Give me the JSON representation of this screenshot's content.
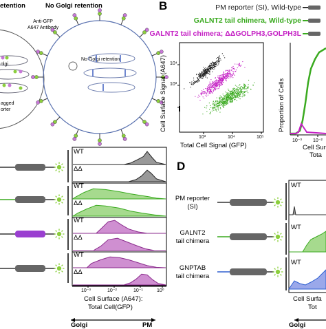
{
  "figure": {
    "panel_a": {
      "left_header": "etention",
      "right_header": "No Golgi retention",
      "antibody_label": "Anti-GFP\nA647 Antibody",
      "antibody_line1": "Anti-GFP",
      "antibody_line2": "A647 Antibody",
      "golgi_label_partial": "olgi",
      "tagged_label": "agged",
      "reporter_label": "orter",
      "no_golgi_label": "No Golgi retention"
    },
    "panel_b": {
      "letter": "B",
      "legend": [
        {
          "text": "PM reporter (SI), Wild-type",
          "color": "#222222"
        },
        {
          "text": "GALNT2 tail chimera, Wild-type",
          "color": "#3aaa1f"
        },
        {
          "text": "GALNT2 tail chimera; ΔΔGOLPH3,GOLPH3L",
          "color": "#c41fc4"
        }
      ],
      "scatter": {
        "ylabel": "Cell Surface Signal (A647)",
        "xlabel": "Total Cell Signal (GFP)",
        "yticks": [
          "10⁴",
          "10³"
        ],
        "xticks": [
          "10³",
          "10⁴",
          "10⁵"
        ]
      },
      "hist": {
        "ylabel": "Proportion of Cells",
        "xticks": [
          "10⁻³",
          "10⁻²"
        ],
        "xlabel_partial": "Cell Sur",
        "xlabel_partial2": "Tota"
      }
    },
    "panel_c": {
      "rows": [
        {
          "label": "WT"
        },
        {
          "label": "ΔΔ"
        },
        {
          "label": "WT"
        },
        {
          "label": "ΔΔ"
        },
        {
          "label": "WT"
        },
        {
          "label": "ΔΔ"
        },
        {
          "label": "WT"
        },
        {
          "label": "ΔΔ"
        }
      ],
      "xticks": [
        "10⁻³",
        "10⁻²",
        "10⁻¹",
        "10⁰"
      ],
      "xlabel_line1": "Cell Surface (A647):",
      "xlabel_line2": "Total Cell(GFP)",
      "arrow_left": "Golgi",
      "arrow_right": "PM",
      "colors": [
        "#999999",
        "#999999",
        "#a6da8e",
        "#a6da8e",
        "#cf8fd1",
        "#cf8fd1",
        "#cf8fd1",
        "#cf8fd1"
      ]
    },
    "panel_d": {
      "letter": "D",
      "constructs": [
        {
          "line1": "PM reporter",
          "line2": "(SI)"
        },
        {
          "line1": "GALNT2",
          "line2": "tail chimera"
        },
        {
          "line1": "GNPTAB",
          "line2": "tail chimera"
        }
      ],
      "rows": [
        {
          "label": "WT"
        },
        {
          "label": "WT"
        },
        {
          "label": "WT"
        }
      ],
      "arrow_left": "Golgi",
      "xlabel_partial": "Cell Surfa",
      "xlabel_partial2": "Tot"
    }
  }
}
